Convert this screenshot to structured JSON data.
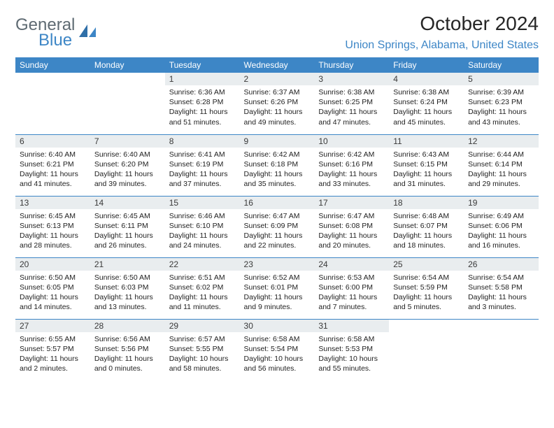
{
  "logo": {
    "part1": "General",
    "part2": "Blue"
  },
  "title": "October 2024",
  "location": "Union Springs, Alabama, United States",
  "colors": {
    "header_bg": "#3d86c6",
    "header_text": "#ffffff",
    "daynum_bg": "#e9edef",
    "border": "#3d86c6",
    "logo_gray": "#5e6a72",
    "logo_blue": "#3d86c6"
  },
  "typography": {
    "title_fontsize": 28,
    "location_fontsize": 16,
    "weekday_fontsize": 12,
    "daynum_fontsize": 12,
    "body_fontsize": 10.5
  },
  "weekdays": [
    "Sunday",
    "Monday",
    "Tuesday",
    "Wednesday",
    "Thursday",
    "Friday",
    "Saturday"
  ],
  "grid": [
    [
      null,
      null,
      {
        "n": "1",
        "sr": "6:36 AM",
        "ss": "6:28 PM",
        "dl": "11 hours and 51 minutes."
      },
      {
        "n": "2",
        "sr": "6:37 AM",
        "ss": "6:26 PM",
        "dl": "11 hours and 49 minutes."
      },
      {
        "n": "3",
        "sr": "6:38 AM",
        "ss": "6:25 PM",
        "dl": "11 hours and 47 minutes."
      },
      {
        "n": "4",
        "sr": "6:38 AM",
        "ss": "6:24 PM",
        "dl": "11 hours and 45 minutes."
      },
      {
        "n": "5",
        "sr": "6:39 AM",
        "ss": "6:23 PM",
        "dl": "11 hours and 43 minutes."
      }
    ],
    [
      {
        "n": "6",
        "sr": "6:40 AM",
        "ss": "6:21 PM",
        "dl": "11 hours and 41 minutes."
      },
      {
        "n": "7",
        "sr": "6:40 AM",
        "ss": "6:20 PM",
        "dl": "11 hours and 39 minutes."
      },
      {
        "n": "8",
        "sr": "6:41 AM",
        "ss": "6:19 PM",
        "dl": "11 hours and 37 minutes."
      },
      {
        "n": "9",
        "sr": "6:42 AM",
        "ss": "6:18 PM",
        "dl": "11 hours and 35 minutes."
      },
      {
        "n": "10",
        "sr": "6:42 AM",
        "ss": "6:16 PM",
        "dl": "11 hours and 33 minutes."
      },
      {
        "n": "11",
        "sr": "6:43 AM",
        "ss": "6:15 PM",
        "dl": "11 hours and 31 minutes."
      },
      {
        "n": "12",
        "sr": "6:44 AM",
        "ss": "6:14 PM",
        "dl": "11 hours and 29 minutes."
      }
    ],
    [
      {
        "n": "13",
        "sr": "6:45 AM",
        "ss": "6:13 PM",
        "dl": "11 hours and 28 minutes."
      },
      {
        "n": "14",
        "sr": "6:45 AM",
        "ss": "6:11 PM",
        "dl": "11 hours and 26 minutes."
      },
      {
        "n": "15",
        "sr": "6:46 AM",
        "ss": "6:10 PM",
        "dl": "11 hours and 24 minutes."
      },
      {
        "n": "16",
        "sr": "6:47 AM",
        "ss": "6:09 PM",
        "dl": "11 hours and 22 minutes."
      },
      {
        "n": "17",
        "sr": "6:47 AM",
        "ss": "6:08 PM",
        "dl": "11 hours and 20 minutes."
      },
      {
        "n": "18",
        "sr": "6:48 AM",
        "ss": "6:07 PM",
        "dl": "11 hours and 18 minutes."
      },
      {
        "n": "19",
        "sr": "6:49 AM",
        "ss": "6:06 PM",
        "dl": "11 hours and 16 minutes."
      }
    ],
    [
      {
        "n": "20",
        "sr": "6:50 AM",
        "ss": "6:05 PM",
        "dl": "11 hours and 14 minutes."
      },
      {
        "n": "21",
        "sr": "6:50 AM",
        "ss": "6:03 PM",
        "dl": "11 hours and 13 minutes."
      },
      {
        "n": "22",
        "sr": "6:51 AM",
        "ss": "6:02 PM",
        "dl": "11 hours and 11 minutes."
      },
      {
        "n": "23",
        "sr": "6:52 AM",
        "ss": "6:01 PM",
        "dl": "11 hours and 9 minutes."
      },
      {
        "n": "24",
        "sr": "6:53 AM",
        "ss": "6:00 PM",
        "dl": "11 hours and 7 minutes."
      },
      {
        "n": "25",
        "sr": "6:54 AM",
        "ss": "5:59 PM",
        "dl": "11 hours and 5 minutes."
      },
      {
        "n": "26",
        "sr": "6:54 AM",
        "ss": "5:58 PM",
        "dl": "11 hours and 3 minutes."
      }
    ],
    [
      {
        "n": "27",
        "sr": "6:55 AM",
        "ss": "5:57 PM",
        "dl": "11 hours and 2 minutes."
      },
      {
        "n": "28",
        "sr": "6:56 AM",
        "ss": "5:56 PM",
        "dl": "11 hours and 0 minutes."
      },
      {
        "n": "29",
        "sr": "6:57 AM",
        "ss": "5:55 PM",
        "dl": "10 hours and 58 minutes."
      },
      {
        "n": "30",
        "sr": "6:58 AM",
        "ss": "5:54 PM",
        "dl": "10 hours and 56 minutes."
      },
      {
        "n": "31",
        "sr": "6:58 AM",
        "ss": "5:53 PM",
        "dl": "10 hours and 55 minutes."
      },
      null,
      null
    ]
  ],
  "labels": {
    "sunrise": "Sunrise:",
    "sunset": "Sunset:",
    "daylight": "Daylight:"
  }
}
